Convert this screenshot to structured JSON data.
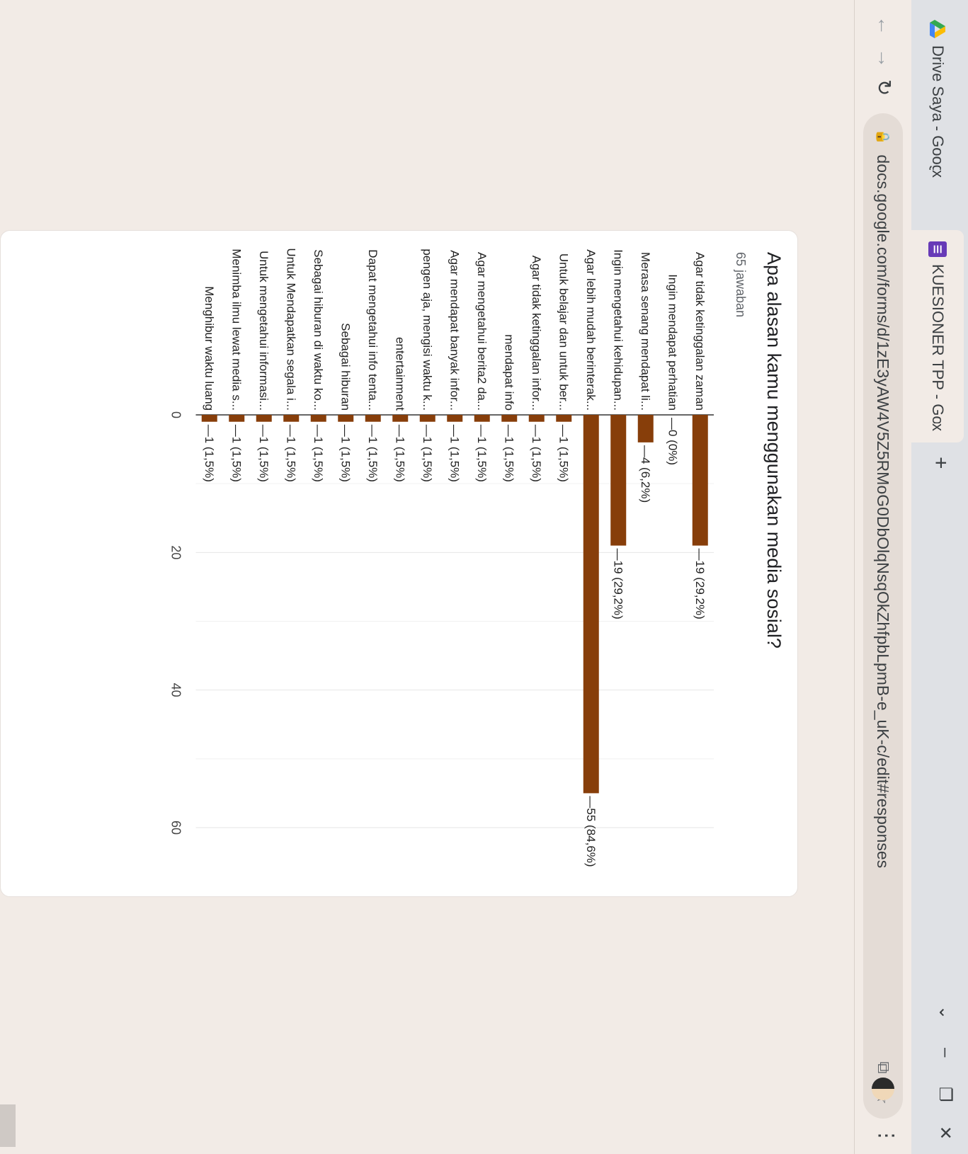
{
  "browser": {
    "tabs": [
      {
        "title": "Drive Saya - Google Drive",
        "icon": "drive-icon"
      },
      {
        "title": "KUESIONER TPP - Google Formu",
        "icon": "forms-icon"
      }
    ],
    "url": "docs.google.com/forms/d/1zE3yAW4V5Z5RMoG0DbOlqNsqOkZhfpbLpmB-e_uK-c/edit#responses",
    "new_tab": "+",
    "close": "x"
  },
  "question": {
    "title": "Apa alasan kamu menggunakan media sosial?",
    "count": "65 jawaban"
  },
  "chart_data": {
    "type": "bar",
    "orientation": "horizontal",
    "categories": [
      "Agar tidak ketinggalan zaman",
      "Ingin mendapat perhatian",
      "Merasa senang mendapat li...",
      "Ingin mengetahui kehidupan...",
      "Agar lebih mudah berinterak...",
      "Untuk belajar dan untuk ber...",
      "Agar tidak ketinggalan infor...",
      "mendapat info",
      "Agar mengetahui berita2 da...",
      "Agar mendapat banyak infor...",
      "pengen aja, mengisi waktu k...",
      "entertainment",
      "Dapat mengetahui info tenta...",
      "Sebagai hiburan",
      "Sebagai hiburan di waktu ko...",
      "Untuk Mendapatkan segala i...",
      "Untuk mengetahui informasi...",
      "Menimba ilmu lewat media s...",
      "Menghibur waktu luang"
    ],
    "values": [
      19,
      0,
      4,
      19,
      55,
      1,
      1,
      1,
      1,
      1,
      1,
      1,
      1,
      1,
      1,
      1,
      1,
      1,
      1
    ],
    "labels": [
      "19 (29,2%)",
      "0 (0%)",
      "4 (6,2%)",
      "19 (29,2%)",
      "55 (84,6%)",
      "1 (1,5%)",
      "1 (1,5%)",
      "1 (1,5%)",
      "1 (1,5%)",
      "1 (1,5%)",
      "1 (1,5%)",
      "1 (1,5%)",
      "1 (1,5%)",
      "1 (1,5%)",
      "1 (1,5%)",
      "1 (1,5%)",
      "1 (1,5%)",
      "1 (1,5%)",
      "1 (1,5%)"
    ],
    "xticks": [
      0,
      20,
      40,
      60
    ],
    "xlim": [
      0,
      60
    ],
    "grid": true,
    "bar_color": "#873e0a"
  }
}
